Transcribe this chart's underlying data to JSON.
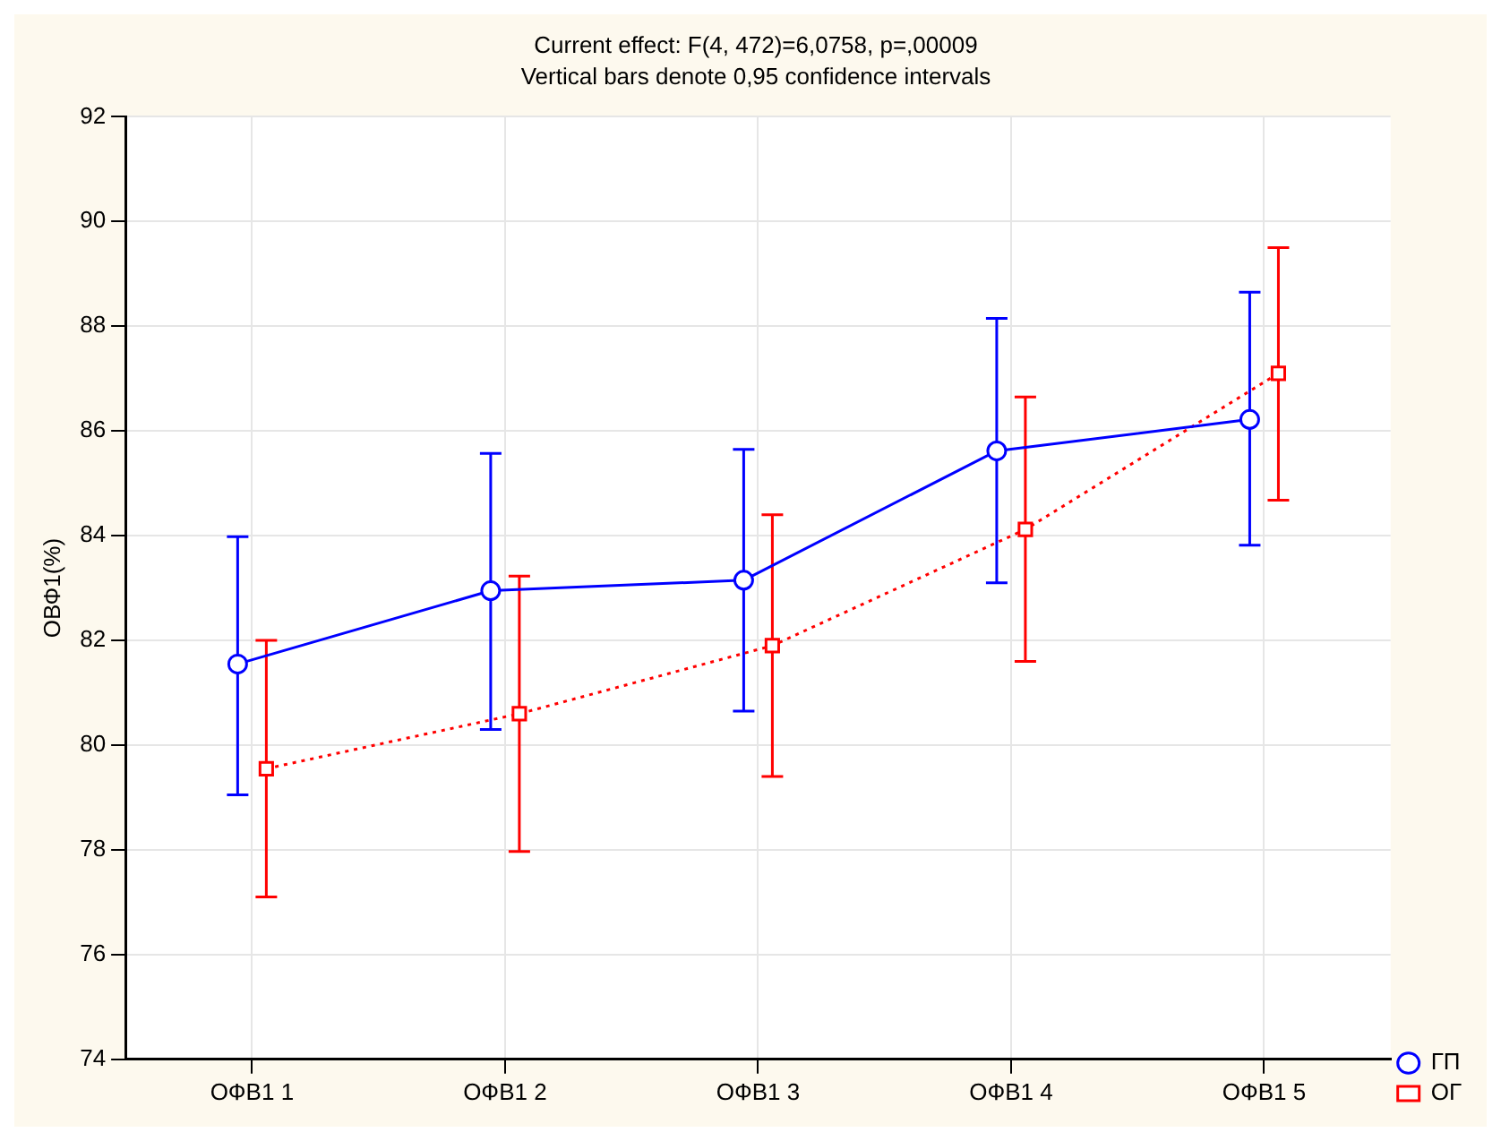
{
  "chart_data": {
    "type": "line",
    "title": "Current effect: F(4, 472)=6,0758, p=,00009",
    "subtitle": "Vertical bars denote 0,95 confidence intervals",
    "ylabel": "ОВФ1(%)",
    "categories": [
      "ОФВ1 1",
      "ОФВ1 2",
      "ОФВ1 3",
      "ОФВ1 4",
      "ОФВ1 5"
    ],
    "series": [
      {
        "name": "ГП",
        "color": "#0000ff",
        "marker": "circle",
        "line_style": "solid",
        "values": [
          81.55,
          82.95,
          83.15,
          85.62,
          86.22
        ],
        "errors": [
          [
            79.05,
            83.98
          ],
          [
            80.3,
            85.57
          ],
          [
            80.65,
            85.65
          ],
          [
            83.1,
            88.15
          ],
          [
            83.82,
            88.65
          ]
        ]
      },
      {
        "name": "ОГ",
        "color": "#ff0000",
        "marker": "square",
        "line_style": "dotted",
        "values": [
          79.55,
          80.6,
          81.9,
          84.12,
          87.1
        ],
        "errors": [
          [
            77.1,
            82.0
          ],
          [
            77.97,
            83.23
          ],
          [
            79.4,
            84.4
          ],
          [
            81.6,
            86.65
          ],
          [
            84.68,
            89.5
          ]
        ]
      }
    ],
    "ylim": [
      74,
      92
    ],
    "yticks": [
      74,
      76,
      78,
      80,
      82,
      84,
      86,
      88,
      90,
      92
    ],
    "grid": true,
    "legend": "bottom right"
  }
}
